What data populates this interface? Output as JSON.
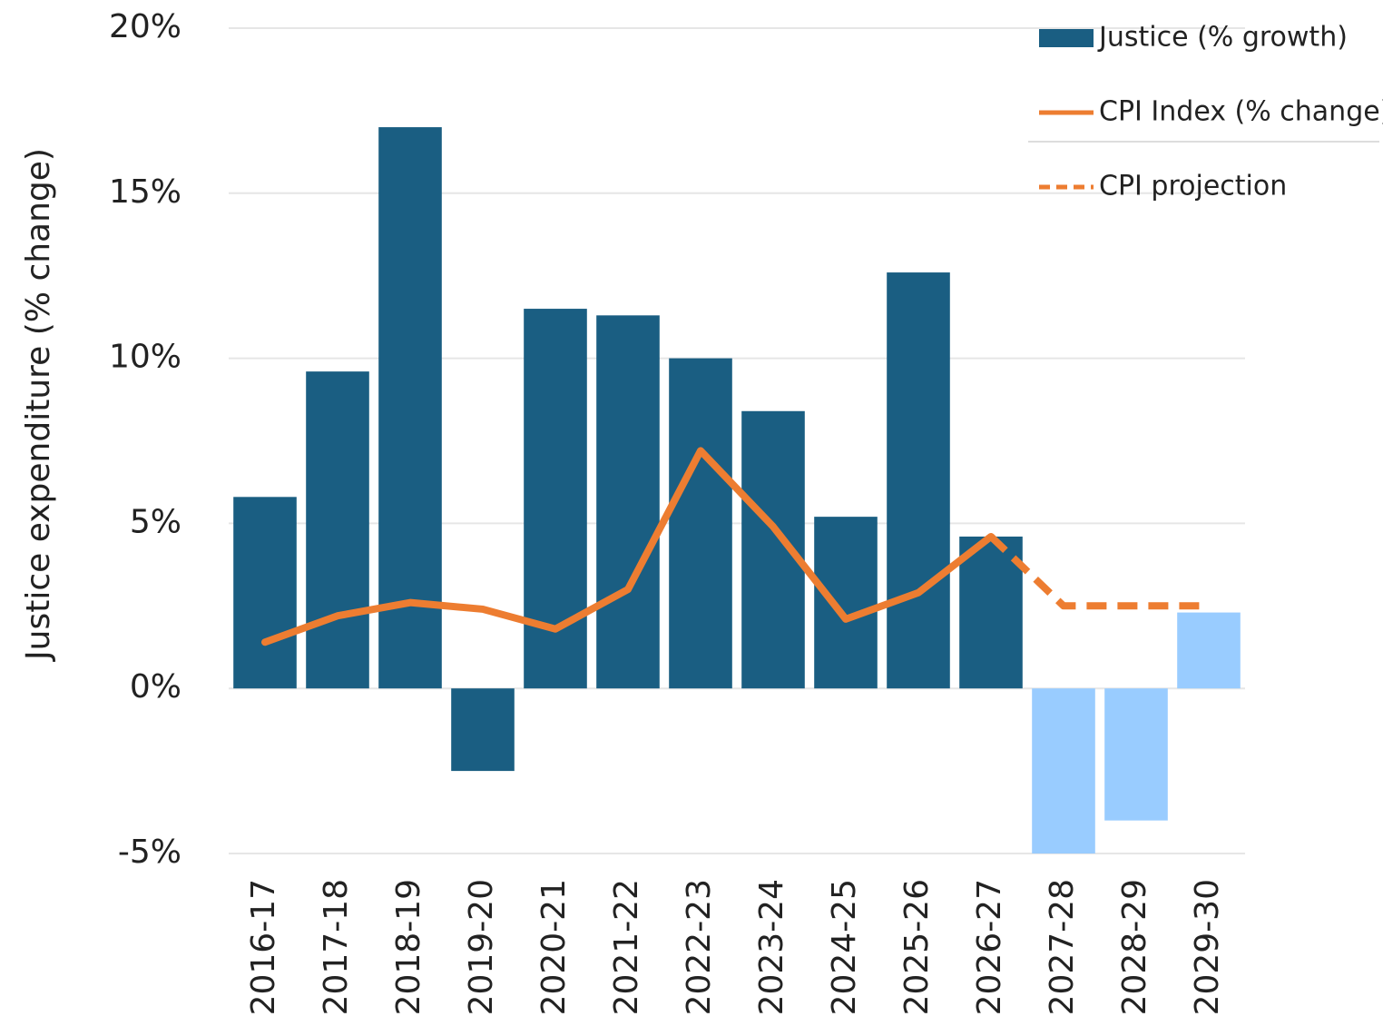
{
  "chart_data": {
    "type": "bar-line",
    "y_label": "Justice expenditure (% change)",
    "categories": [
      "2016-17",
      "2017-18",
      "2018-19",
      "2019-20",
      "2020-21",
      "2021-22",
      "2022-23",
      "2023-24",
      "2024-25",
      "2025-26",
      "2026-27",
      "2027-28",
      "2028-29",
      "2029-30"
    ],
    "series": [
      {
        "name": "Justice (% growth)",
        "type": "bar",
        "color": "#1a5e82",
        "colors": [
          "#1a5e82",
          "#1a5e82",
          "#1a5e82",
          "#1a5e82",
          "#1a5e82",
          "#1a5e82",
          "#1a5e82",
          "#1a5e82",
          "#1a5e82",
          "#1a5e82",
          "#1a5e82",
          "#99ccff",
          "#99ccff",
          "#99ccff"
        ],
        "values": [
          5.8,
          9.6,
          17.0,
          -2.5,
          11.5,
          11.3,
          10.0,
          8.4,
          5.2,
          12.6,
          4.6,
          -5.0,
          -4.0,
          2.3
        ]
      },
      {
        "name": "CPI Index (% change)",
        "type": "line",
        "color": "#ed7d31",
        "dashed": false,
        "values": [
          1.4,
          2.2,
          2.6,
          2.4,
          1.8,
          3.0,
          7.2,
          4.9,
          2.1,
          2.9,
          4.6,
          null,
          null,
          null
        ]
      },
      {
        "name": "CPI projection",
        "type": "line",
        "color": "#ed7d31",
        "dashed": true,
        "values": [
          null,
          null,
          null,
          null,
          null,
          null,
          null,
          null,
          null,
          null,
          4.6,
          2.5,
          2.5,
          2.5
        ]
      }
    ],
    "ylim": [
      -5,
      20
    ],
    "yticks": [
      {
        "value": -5,
        "label": "-5%"
      },
      {
        "value": 0,
        "label": "0%"
      },
      {
        "value": 5,
        "label": "5%"
      },
      {
        "value": 10,
        "label": "10%"
      },
      {
        "value": 15,
        "label": "15%"
      },
      {
        "value": 20,
        "label": "20%"
      }
    ],
    "grid": true,
    "legend": "top-right"
  }
}
